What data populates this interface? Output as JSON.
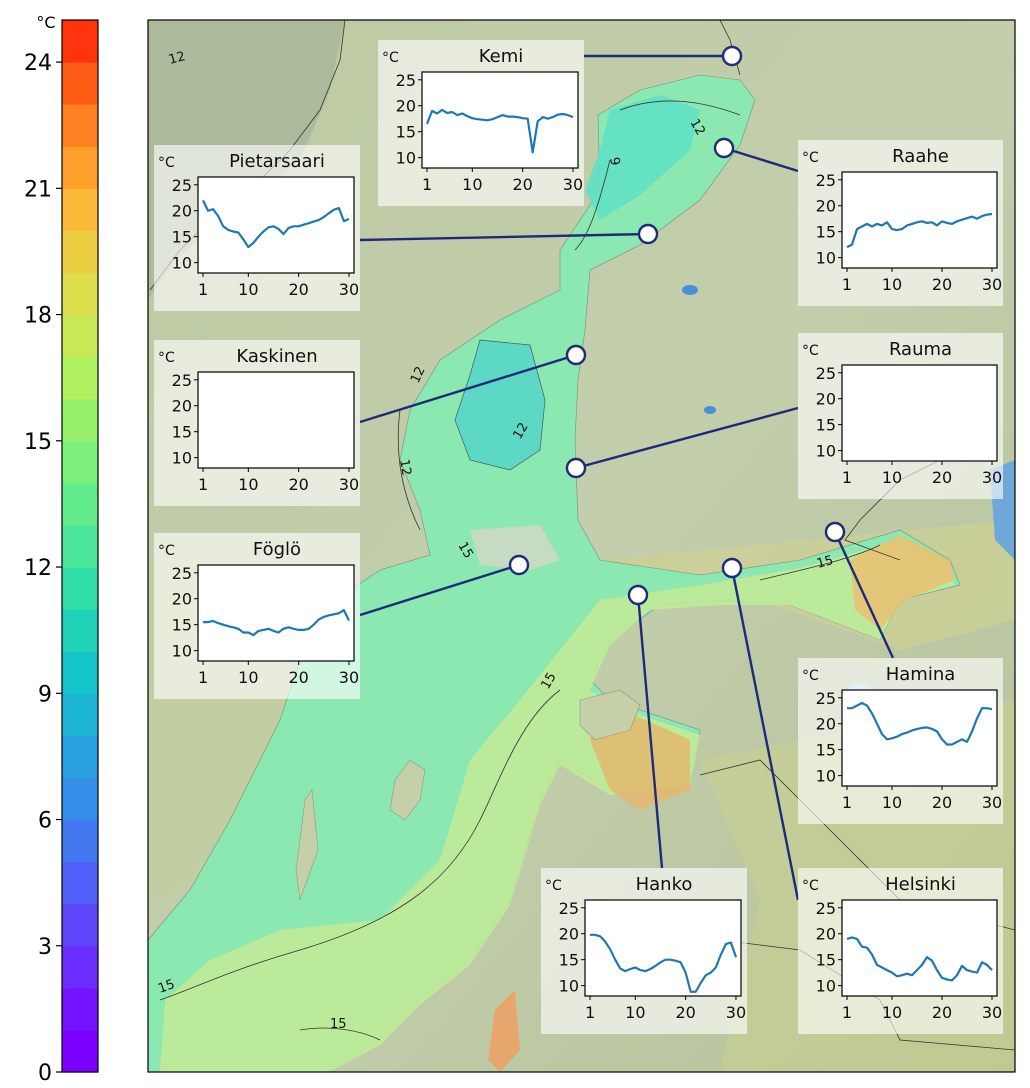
{
  "colorbar": {
    "unit": "°C",
    "min": 0,
    "max": 25,
    "ticks": [
      0,
      3,
      6,
      9,
      12,
      15,
      18,
      21,
      24
    ],
    "levels": 25
  },
  "map": {
    "contours": [
      "12",
      "9",
      "12",
      "12",
      "12",
      "12",
      "15",
      "15",
      "15",
      "15",
      "15"
    ]
  },
  "inset_axes": {
    "unit": "°C",
    "y_ticks": [
      10,
      15,
      20,
      25
    ],
    "x_ticks": [
      1,
      10,
      20,
      30
    ],
    "y_range": [
      8,
      26.5
    ],
    "x_range": [
      0,
      31
    ]
  },
  "stations": [
    {
      "name": "Kemi",
      "days": [
        1,
        2,
        3,
        4,
        5,
        6,
        7,
        8,
        9,
        10,
        11,
        12,
        13,
        14,
        15,
        16,
        17,
        18,
        19,
        20,
        21,
        22,
        23,
        24,
        25,
        26,
        27,
        28,
        29,
        30
      ],
      "values": [
        16.5,
        19.0,
        18.5,
        19.2,
        18.6,
        18.8,
        18.2,
        18.5,
        18.0,
        17.6,
        17.4,
        17.3,
        17.2,
        17.4,
        17.8,
        18.2,
        17.9,
        17.9,
        17.8,
        17.6,
        17.5,
        11.0,
        17.0,
        17.8,
        17.5,
        17.8,
        18.3,
        18.4,
        18.2,
        17.8
      ]
    },
    {
      "name": "Raahe",
      "days": [
        1,
        2,
        3,
        4,
        5,
        6,
        7,
        8,
        9,
        10,
        11,
        12,
        13,
        14,
        15,
        16,
        17,
        18,
        19,
        20,
        21,
        22,
        23,
        24,
        25,
        26,
        27,
        28,
        29,
        30
      ],
      "values": [
        12.0,
        12.5,
        15.5,
        16.0,
        16.5,
        16.0,
        16.5,
        16.2,
        16.8,
        15.5,
        15.3,
        15.5,
        16.2,
        16.5,
        16.8,
        17.0,
        16.7,
        16.8,
        16.2,
        17.0,
        16.7,
        16.5,
        17.0,
        17.3,
        17.6,
        17.9,
        17.5,
        18.0,
        18.3,
        18.4
      ]
    },
    {
      "name": "Pietarsaari",
      "days": [
        1,
        2,
        3,
        4,
        5,
        6,
        7,
        8,
        9,
        10,
        11,
        12,
        13,
        14,
        15,
        16,
        17,
        18,
        19,
        20,
        21,
        22,
        23,
        24,
        25,
        26,
        27,
        28,
        29,
        30
      ],
      "values": [
        22.0,
        20.0,
        20.3,
        19.0,
        17.0,
        16.3,
        16.0,
        15.8,
        14.5,
        13.0,
        13.8,
        15.0,
        16.0,
        16.8,
        17.0,
        16.5,
        15.5,
        16.7,
        17.0,
        17.0,
        17.3,
        17.6,
        17.9,
        18.2,
        18.8,
        19.5,
        20.2,
        20.5,
        18.0,
        18.4
      ]
    },
    {
      "name": "Kaskinen",
      "days": [],
      "values": []
    },
    {
      "name": "Rauma",
      "days": [],
      "values": []
    },
    {
      "name": "Föglö",
      "days": [
        1,
        2,
        3,
        4,
        5,
        6,
        7,
        8,
        9,
        10,
        11,
        12,
        13,
        14,
        15,
        16,
        17,
        18,
        19,
        20,
        21,
        22,
        23,
        24,
        25,
        26,
        27,
        28,
        29,
        30
      ],
      "values": [
        15.5,
        15.5,
        15.7,
        15.3,
        15.0,
        14.7,
        14.5,
        14.2,
        13.5,
        13.5,
        13.0,
        13.8,
        14.0,
        14.2,
        13.8,
        13.5,
        14.2,
        14.5,
        14.2,
        14.0,
        14.0,
        14.2,
        15.0,
        16.0,
        16.5,
        16.8,
        17.0,
        17.2,
        17.8,
        15.8
      ]
    },
    {
      "name": "Hamina",
      "days": [
        1,
        2,
        3,
        4,
        5,
        6,
        7,
        8,
        9,
        10,
        11,
        12,
        13,
        14,
        15,
        16,
        17,
        18,
        19,
        20,
        21,
        22,
        23,
        24,
        25,
        26,
        27,
        28,
        29,
        30
      ],
      "values": [
        23.0,
        23.0,
        23.5,
        24.0,
        23.5,
        22.0,
        20.0,
        18.0,
        17.0,
        17.2,
        17.5,
        18.0,
        18.3,
        18.7,
        19.0,
        19.2,
        19.3,
        19.0,
        18.5,
        17.0,
        16.0,
        16.0,
        16.5,
        17.0,
        16.5,
        18.5,
        21.0,
        23.0,
        23.0,
        22.8
      ]
    },
    {
      "name": "Hanko",
      "days": [
        1,
        2,
        3,
        4,
        5,
        6,
        7,
        8,
        9,
        10,
        11,
        12,
        13,
        14,
        15,
        16,
        17,
        18,
        19,
        20,
        21,
        22,
        23,
        24,
        25,
        26,
        27,
        28,
        29,
        30
      ],
      "values": [
        19.8,
        19.8,
        19.5,
        18.5,
        17.0,
        15.0,
        13.3,
        12.8,
        13.2,
        13.5,
        13.0,
        12.8,
        13.2,
        13.8,
        14.5,
        15.0,
        15.0,
        14.8,
        14.5,
        12.5,
        8.8,
        8.8,
        10.5,
        12.0,
        12.5,
        13.5,
        16.0,
        18.0,
        18.3,
        15.5
      ]
    },
    {
      "name": "Helsinki",
      "days": [
        1,
        2,
        3,
        4,
        5,
        6,
        7,
        8,
        9,
        10,
        11,
        12,
        13,
        14,
        15,
        16,
        17,
        18,
        19,
        20,
        21,
        22,
        23,
        24,
        25,
        26,
        27,
        28,
        29,
        30
      ],
      "values": [
        19.0,
        19.3,
        19.0,
        17.5,
        17.3,
        16.0,
        14.0,
        13.5,
        13.0,
        12.5,
        11.8,
        12.0,
        12.3,
        12.0,
        13.0,
        14.0,
        15.5,
        14.8,
        13.0,
        11.5,
        11.2,
        11.0,
        12.0,
        13.8,
        13.0,
        12.7,
        12.5,
        14.5,
        14.0,
        13.0
      ]
    }
  ]
}
